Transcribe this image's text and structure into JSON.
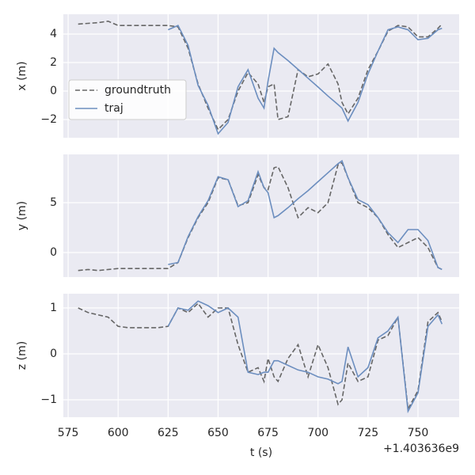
{
  "chart_data": [
    {
      "type": "line",
      "ylabel": "x (m)",
      "legend": "center left",
      "grid": true,
      "show_xtick_labels": false,
      "xlim": [
        572.6,
        770.6
      ],
      "xticks": [
        575,
        600,
        625,
        650,
        675,
        700,
        725,
        750
      ],
      "ylim": [
        -3.28,
        5.39
      ],
      "yticks": [
        {
          "value": -2,
          "label": "−2"
        },
        0,
        2,
        4
      ],
      "x": [
        580,
        585,
        590,
        595,
        600,
        605,
        610,
        615,
        620,
        625,
        630,
        635,
        640,
        645,
        650,
        655,
        660,
        665,
        670,
        673,
        675,
        678,
        680,
        685,
        690,
        695,
        700,
        705,
        710,
        712,
        715,
        720,
        725,
        730,
        735,
        740,
        745,
        750,
        755,
        760,
        762
      ],
      "series": [
        {
          "name": "groundtruth",
          "color": "#666666",
          "dash": true,
          "values": [
            4.7,
            4.75,
            4.8,
            4.9,
            4.6,
            4.6,
            4.6,
            4.6,
            4.6,
            4.6,
            4.5,
            3.0,
            0.5,
            -1.2,
            -2.7,
            -2.0,
            0,
            1.3,
            0.5,
            -0.8,
            0.3,
            0.5,
            -2.0,
            -1.8,
            1.5,
            1.0,
            1.2,
            1.9,
            0.5,
            -0.8,
            -1.6,
            -0.5,
            1.5,
            2.8,
            4.2,
            4.6,
            4.5,
            3.8,
            3.8,
            4.4,
            4.7
          ]
        },
        {
          "name": "traj",
          "color": "#6c8ebf",
          "dash": false,
          "values": [
            null,
            null,
            null,
            null,
            null,
            null,
            null,
            null,
            null,
            4.3,
            4.6,
            3.2,
            0.4,
            -1.0,
            -3.0,
            -2.2,
            0.3,
            1.5,
            -0.5,
            -1.2,
            0.7,
            3.0,
            2.7,
            2.14,
            1.52,
            0.9,
            0.28,
            -0.35,
            -0.95,
            -1.2,
            -2.1,
            -0.8,
            1.2,
            2.8,
            4.3,
            4.5,
            4.3,
            3.6,
            3.7,
            4.3,
            4.4
          ]
        }
      ]
    },
    {
      "type": "line",
      "ylabel": "y (m)",
      "grid": true,
      "show_xtick_labels": false,
      "xlim": [
        572.6,
        770.6
      ],
      "xticks": [
        575,
        600,
        625,
        650,
        675,
        700,
        725,
        750
      ],
      "ylim": [
        -2.46,
        9.84
      ],
      "yticks": [
        0,
        5
      ],
      "x": [
        580,
        585,
        590,
        595,
        600,
        605,
        610,
        615,
        620,
        625,
        630,
        635,
        640,
        645,
        650,
        655,
        660,
        665,
        670,
        673,
        675,
        678,
        680,
        685,
        690,
        695,
        700,
        705,
        710,
        712,
        715,
        720,
        725,
        730,
        735,
        740,
        745,
        750,
        755,
        760,
        762
      ],
      "series": [
        {
          "name": "groundtruth",
          "color": "#666666",
          "dash": true,
          "values": [
            -1.8,
            -1.7,
            -1.8,
            -1.7,
            -1.6,
            -1.6,
            -1.6,
            -1.6,
            -1.6,
            -1.6,
            -1.0,
            1.5,
            3.5,
            5.0,
            7.5,
            7.3,
            4.7,
            5.0,
            7.8,
            6.5,
            6.3,
            8.5,
            8.6,
            6.5,
            3.5,
            4.5,
            4.0,
            5.0,
            8.8,
            9.0,
            7.5,
            5.0,
            4.5,
            3.5,
            1.8,
            0.5,
            1.0,
            1.5,
            0.5,
            -1.5,
            -1.7
          ]
        },
        {
          "name": "traj",
          "color": "#6c8ebf",
          "dash": false,
          "values": [
            null,
            null,
            null,
            null,
            null,
            null,
            null,
            null,
            null,
            -1.2,
            -1.0,
            1.6,
            3.6,
            5.2,
            7.6,
            7.3,
            4.6,
            5.2,
            8.1,
            6.5,
            6.0,
            3.5,
            3.7,
            4.5,
            5.4,
            6.2,
            7.1,
            8.0,
            8.9,
            9.2,
            7.5,
            5.3,
            4.8,
            3.5,
            2.0,
            1.0,
            2.3,
            2.3,
            1.2,
            -1.5,
            -1.7
          ]
        }
      ]
    },
    {
      "type": "line",
      "ylabel": "z (m)",
      "xlabel": "t (s)",
      "x_offset_label": "+1.403636e9",
      "grid": true,
      "show_xtick_labels": true,
      "xlim": [
        572.6,
        770.6
      ],
      "xticks": [
        575,
        600,
        625,
        650,
        675,
        700,
        725,
        750
      ],
      "ylim": [
        -1.38,
        1.31
      ],
      "yticks": [
        {
          "value": -1,
          "label": "−1"
        },
        0,
        1
      ],
      "x": [
        580,
        585,
        590,
        595,
        600,
        605,
        610,
        615,
        620,
        625,
        630,
        635,
        640,
        645,
        650,
        655,
        660,
        665,
        670,
        673,
        675,
        678,
        680,
        685,
        690,
        695,
        700,
        705,
        710,
        712,
        715,
        720,
        725,
        730,
        735,
        740,
        745,
        750,
        755,
        760,
        762
      ],
      "series": [
        {
          "name": "groundtruth",
          "color": "#666666",
          "dash": true,
          "values": [
            1.0,
            0.9,
            0.85,
            0.8,
            0.6,
            0.57,
            0.57,
            0.57,
            0.57,
            0.6,
            1.0,
            0.9,
            1.1,
            0.8,
            1.0,
            1.0,
            0.2,
            -0.4,
            -0.3,
            -0.6,
            -0.1,
            -0.5,
            -0.6,
            -0.1,
            0.2,
            -0.5,
            0.2,
            -0.3,
            -1.1,
            -1.0,
            -0.2,
            -0.6,
            -0.5,
            0.3,
            0.4,
            0.8,
            -1.2,
            -0.8,
            0.7,
            0.9,
            0.7
          ]
        },
        {
          "name": "traj",
          "color": "#6c8ebf",
          "dash": false,
          "values": [
            null,
            null,
            null,
            null,
            null,
            null,
            null,
            null,
            null,
            0.6,
            1.0,
            0.95,
            1.15,
            1.05,
            0.9,
            1.0,
            0.8,
            -0.4,
            -0.45,
            -0.4,
            -0.4,
            -0.15,
            -0.15,
            -0.25,
            -0.35,
            -0.4,
            -0.5,
            -0.55,
            -0.65,
            -0.6,
            0.15,
            -0.5,
            -0.3,
            0.35,
            0.5,
            0.8,
            -1.25,
            -0.85,
            0.6,
            0.85,
            0.65
          ]
        }
      ]
    }
  ]
}
